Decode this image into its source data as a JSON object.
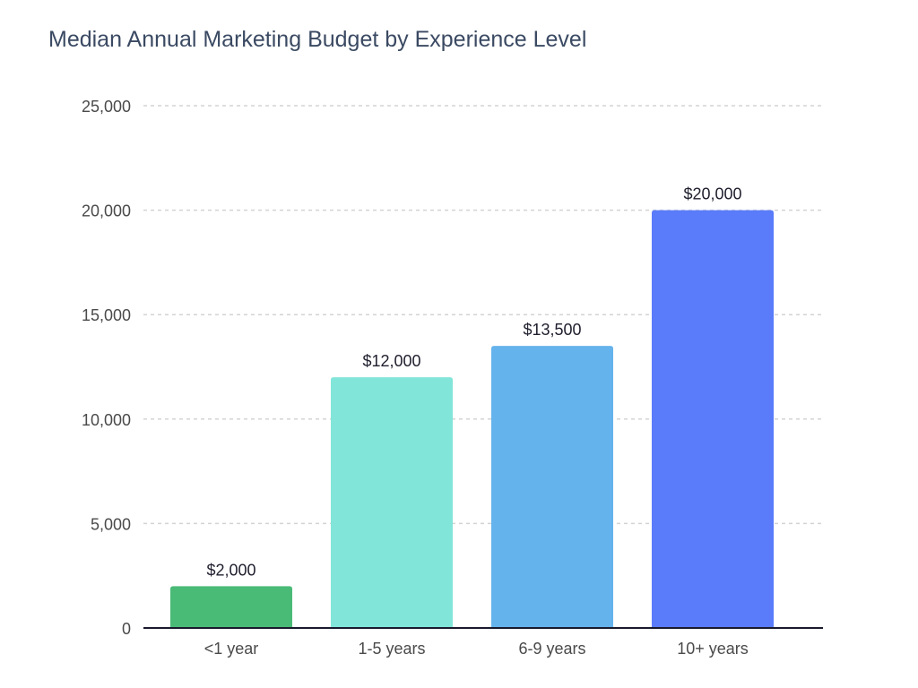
{
  "chart_data": {
    "type": "bar",
    "title": "Median Annual Marketing Budget by Experience Level",
    "xlabel": "",
    "ylabel": "",
    "categories": [
      "<1 year",
      "1-5 years",
      "6-9 years",
      "10+ years"
    ],
    "values": [
      2000,
      12000,
      13500,
      20000
    ],
    "bar_labels": [
      "$2,000",
      "$12,000",
      "$13,500",
      "$20,000"
    ],
    "bar_colors": [
      "#4aba77",
      "#82e5d9",
      "#65b3ec",
      "#5a7cfb"
    ],
    "ylim": [
      0,
      25000
    ],
    "yticks": [
      0,
      5000,
      10000,
      15000,
      20000,
      25000
    ],
    "ytick_labels": [
      "0",
      "5,000",
      "10,000",
      "15,000",
      "20,000",
      "25,000"
    ],
    "grid": "horizontal dashed",
    "legend": "none"
  }
}
